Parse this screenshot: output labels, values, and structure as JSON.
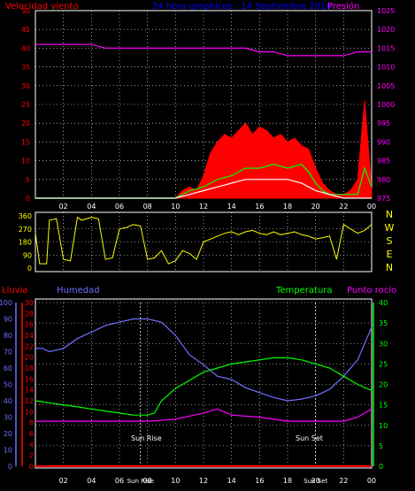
{
  "chart_data": [
    {
      "type": "line",
      "panel": "wind",
      "title": "24 hora graphicos : 14 Septiembre 2014",
      "left_label": "Velocidad viento",
      "right_label": "Presión",
      "x_ticks": [
        "02",
        "04",
        "06",
        "08",
        "10",
        "12",
        "14",
        "16",
        "18",
        "20",
        "22",
        "00"
      ],
      "y_left_ticks": [
        0,
        5,
        10,
        15,
        20,
        25,
        30,
        35,
        40,
        45,
        50
      ],
      "y_right_ticks": [
        975,
        980,
        985,
        990,
        995,
        1000,
        1005,
        1010,
        1015,
        1020,
        1025
      ],
      "y_left_range": [
        0,
        50
      ],
      "y_right_range": [
        975,
        1025
      ],
      "series": [
        {
          "color": "#ff00ff",
          "axis": "right",
          "x": [
            0,
            1,
            2,
            3,
            4,
            5,
            6,
            7,
            8,
            9,
            10,
            11,
            12,
            13,
            14,
            15,
            16,
            17,
            18,
            19,
            20,
            21,
            22,
            23,
            24
          ],
          "y": [
            1016,
            1016,
            1016,
            1016,
            1016,
            1015,
            1015,
            1015,
            1015,
            1015,
            1015,
            1015,
            1015,
            1015,
            1015,
            1015,
            1014,
            1014,
            1013,
            1013,
            1013,
            1013,
            1013,
            1014,
            1014
          ]
        },
        {
          "color": "#ff0000",
          "axis": "left",
          "kind": "gust_area",
          "x": [
            0,
            10,
            10.5,
            11,
            11.5,
            12,
            12.5,
            13,
            13.5,
            14,
            14.5,
            15,
            15.5,
            16,
            16.5,
            17,
            17.5,
            18,
            18.5,
            19,
            19.5,
            20,
            20.5,
            21,
            21.5,
            22,
            22.5,
            23,
            23.5,
            24
          ],
          "y": [
            0,
            0,
            2,
            3,
            2,
            6,
            12,
            15,
            17,
            16,
            18,
            20,
            17,
            19,
            18,
            16,
            17,
            15,
            16,
            14,
            13,
            8,
            4,
            2,
            1,
            1,
            2,
            5,
            26,
            2
          ]
        },
        {
          "color": "#00ff00",
          "axis": "left",
          "x": [
            0,
            10,
            11,
            12,
            12.5,
            13,
            14,
            15,
            16,
            17,
            18,
            19,
            19.5,
            20,
            20.5,
            21,
            22,
            23,
            23.5,
            24
          ],
          "y": [
            0,
            0,
            2,
            3,
            4,
            5,
            6,
            8,
            8,
            9,
            8,
            9,
            7,
            4,
            2,
            1,
            1,
            1,
            8,
            3
          ]
        },
        {
          "color": "#ffffff",
          "axis": "left",
          "x": [
            0,
            10,
            11,
            12,
            13,
            14,
            15,
            16,
            17,
            18,
            19,
            19.5,
            20,
            21,
            22,
            23,
            24
          ],
          "y": [
            0,
            0,
            1,
            2,
            3,
            4,
            5,
            5,
            5,
            5,
            4,
            3,
            2,
            1,
            0,
            0,
            0
          ]
        }
      ]
    },
    {
      "type": "line",
      "panel": "direction",
      "y_ticks": [
        "360",
        "270",
        "180",
        "90",
        "0"
      ],
      "right_labels": [
        "N",
        "W",
        "S",
        "E",
        "N"
      ],
      "y_range": [
        0,
        360
      ],
      "series": [
        {
          "color": "#ffff00",
          "x": [
            0,
            0.3,
            0.8,
            1,
            1.5,
            2,
            2.5,
            3,
            3.3,
            4,
            4.5,
            5,
            5.5,
            6,
            6.5,
            7,
            7.5,
            8,
            8.5,
            9,
            9.5,
            10,
            10.5,
            11,
            11.5,
            12,
            12.5,
            13,
            13.5,
            14,
            14.5,
            15,
            15.5,
            16,
            16.5,
            17,
            17.5,
            18,
            18.5,
            19,
            19.5,
            20,
            20.5,
            21,
            21.5,
            22,
            22.5,
            23,
            23.5,
            24
          ],
          "y": [
            240,
            30,
            30,
            330,
            340,
            60,
            50,
            350,
            330,
            350,
            340,
            60,
            70,
            270,
            280,
            300,
            290,
            60,
            70,
            120,
            30,
            50,
            120,
            100,
            60,
            180,
            200,
            220,
            240,
            250,
            230,
            250,
            260,
            240,
            230,
            250,
            230,
            240,
            250,
            230,
            220,
            200,
            210,
            220,
            60,
            300,
            270,
            240,
            260,
            300
          ]
        }
      ]
    },
    {
      "type": "line",
      "panel": "weather",
      "labels": [
        "Lluvia",
        "Humedad",
        "Temperatura",
        "Punto rocío"
      ],
      "annotations": [
        "Sun Rise",
        "Sun Set"
      ],
      "x_ticks": [
        "02",
        "04",
        "06",
        "Sun Rise",
        "08",
        "10",
        "12",
        "14",
        "16",
        "18",
        "Sun Set",
        "20",
        "22",
        "00"
      ],
      "y_rain_ticks": [
        0,
        2,
        4,
        6,
        8,
        10,
        12,
        14,
        16,
        18,
        20,
        22,
        24,
        26,
        28,
        30
      ],
      "y_hum_ticks": [
        0,
        10,
        20,
        30,
        40,
        50,
        60,
        70,
        80,
        90,
        100
      ],
      "y_temp_ticks": [
        0,
        5,
        10,
        15,
        20,
        25,
        30,
        35,
        40
      ],
      "series": [
        {
          "name": "Humedad",
          "color": "#7070ff",
          "axis": "hum",
          "x": [
            0,
            0.5,
            1,
            2,
            3,
            4,
            5,
            6,
            7,
            7.5,
            8,
            9,
            10,
            11,
            12,
            13,
            14,
            15,
            16,
            17,
            18,
            19,
            20,
            21,
            22,
            23,
            23.5,
            24
          ],
          "y": [
            72,
            72,
            70,
            72,
            78,
            82,
            86,
            88,
            90,
            90,
            90,
            88,
            80,
            68,
            62,
            55,
            53,
            48,
            45,
            42,
            40,
            41,
            43,
            47,
            55,
            65,
            75,
            85
          ]
        },
        {
          "name": "Temperatura",
          "color": "#00ff00",
          "axis": "temp",
          "x": [
            0,
            1,
            2,
            3,
            4,
            5,
            6,
            7,
            8,
            8.5,
            9,
            10,
            11,
            12,
            13,
            14,
            15,
            16,
            17,
            18,
            19,
            20,
            21,
            22,
            23,
            24
          ],
          "y": [
            16,
            15.5,
            15,
            14.5,
            14,
            13.5,
            13,
            12.5,
            12.5,
            13,
            16,
            19,
            21,
            23,
            24,
            25,
            25.5,
            26,
            26.5,
            26.5,
            26,
            25,
            24,
            22,
            20,
            18.5
          ]
        },
        {
          "name": "Punto rocío",
          "color": "#ff00ff",
          "axis": "temp",
          "x": [
            0,
            2,
            4,
            6,
            8,
            10,
            12,
            13,
            14,
            16,
            18,
            20,
            22,
            23,
            24
          ],
          "y": [
            11,
            11,
            11,
            11,
            11,
            11.5,
            13,
            14,
            12.5,
            12,
            11,
            11,
            11,
            12,
            14
          ]
        },
        {
          "name": "Lluvia",
          "color": "#ff0000",
          "axis": "rain",
          "x": [
            0,
            24
          ],
          "y": [
            0,
            0
          ]
        }
      ]
    }
  ],
  "colors": {
    "grid": "#ffffff",
    "axis_left": "#ff0000",
    "axis_hum": "#7070ff",
    "axis_temp": "#00ff00",
    "axis_right": "#ff00ff",
    "dir_axis": "#ffff00"
  }
}
